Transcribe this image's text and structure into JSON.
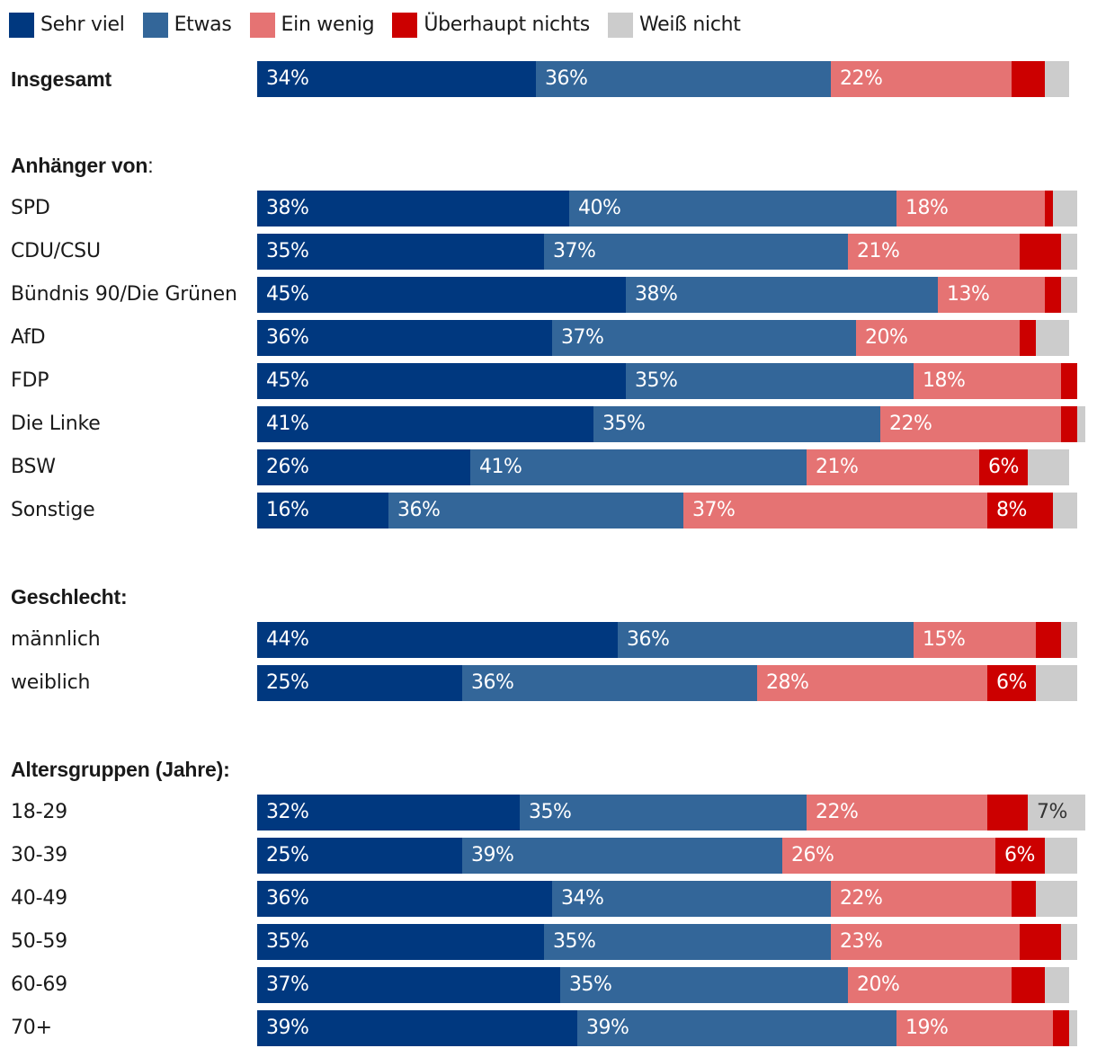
{
  "legend": [
    {
      "label": "Sehr viel",
      "color": "#00387f"
    },
    {
      "label": "Etwas",
      "color": "#336699"
    },
    {
      "label": "Ein wenig",
      "color": "#e57373"
    },
    {
      "label": "Überhaupt nichts",
      "color": "#cc0000"
    },
    {
      "label": "Weiß nicht",
      "color": "#cccccc"
    }
  ],
  "chart_data": {
    "type": "bar",
    "orientation": "horizontal",
    "stacked": true,
    "unit": "%",
    "title": "",
    "xlabel": "",
    "ylabel": "",
    "xlim": [
      0,
      100
    ],
    "grid": false,
    "legend_position": "top-left",
    "series": [
      {
        "name": "Sehr viel",
        "color": "#00387f",
        "label_color": "#ffffff"
      },
      {
        "name": "Etwas",
        "color": "#336699",
        "label_color": "#ffffff"
      },
      {
        "name": "Ein wenig",
        "color": "#e57373",
        "label_color": "#ffffff"
      },
      {
        "name": "Überhaupt nichts",
        "color": "#cc0000",
        "label_color": "#ffffff"
      },
      {
        "name": "Weiß nicht",
        "color": "#cccccc",
        "label_color": "#333333"
      }
    ],
    "rows": [
      {
        "kind": "total",
        "category": "Insgesamt",
        "values": [
          34,
          36,
          22,
          4,
          3
        ],
        "labels": [
          "34%",
          "36%",
          "22%",
          "",
          ""
        ]
      },
      {
        "kind": "heading",
        "text": "Anhänger von",
        "suffix": ":"
      },
      {
        "kind": "bar",
        "category": "SPD",
        "values": [
          38,
          40,
          18,
          1,
          3
        ],
        "labels": [
          "38%",
          "40%",
          "18%",
          "",
          ""
        ]
      },
      {
        "kind": "bar",
        "category": "CDU/CSU",
        "values": [
          35,
          37,
          21,
          5,
          2
        ],
        "labels": [
          "35%",
          "37%",
          "21%",
          "",
          ""
        ]
      },
      {
        "kind": "bar",
        "category": "Bündnis 90/Die Grünen",
        "values": [
          45,
          38,
          13,
          2,
          2
        ],
        "labels": [
          "45%",
          "38%",
          "13%",
          "",
          ""
        ]
      },
      {
        "kind": "bar",
        "category": "AfD",
        "values": [
          36,
          37,
          20,
          2,
          4
        ],
        "labels": [
          "36%",
          "37%",
          "20%",
          "",
          ""
        ]
      },
      {
        "kind": "bar",
        "category": "FDP",
        "values": [
          45,
          35,
          18,
          2,
          0
        ],
        "labels": [
          "45%",
          "35%",
          "18%",
          "",
          ""
        ]
      },
      {
        "kind": "bar",
        "category": "Die Linke",
        "values": [
          41,
          35,
          22,
          2,
          1
        ],
        "labels": [
          "41%",
          "35%",
          "22%",
          "",
          ""
        ]
      },
      {
        "kind": "bar",
        "category": "BSW",
        "values": [
          26,
          41,
          21,
          6,
          5
        ],
        "labels": [
          "26%",
          "41%",
          "21%",
          "6%",
          ""
        ]
      },
      {
        "kind": "bar",
        "category": "Sonstige",
        "values": [
          16,
          36,
          37,
          8,
          3
        ],
        "labels": [
          "16%",
          "36%",
          "37%",
          "8%",
          ""
        ]
      },
      {
        "kind": "heading",
        "text": "Geschlecht:",
        "suffix": ""
      },
      {
        "kind": "bar",
        "category": "männlich",
        "values": [
          44,
          36,
          15,
          3,
          2
        ],
        "labels": [
          "44%",
          "36%",
          "15%",
          "",
          ""
        ]
      },
      {
        "kind": "bar",
        "category": "weiblich",
        "values": [
          25,
          36,
          28,
          6,
          5
        ],
        "labels": [
          "25%",
          "36%",
          "28%",
          "6%",
          ""
        ]
      },
      {
        "kind": "heading",
        "text": "Altersgruppen (Jahre):",
        "suffix": ""
      },
      {
        "kind": "bar",
        "category": "18-29",
        "values": [
          32,
          35,
          22,
          5,
          7
        ],
        "labels": [
          "32%",
          "35%",
          "22%",
          "",
          "7%"
        ]
      },
      {
        "kind": "bar",
        "category": "30-39",
        "values": [
          25,
          39,
          26,
          6,
          4
        ],
        "labels": [
          "25%",
          "39%",
          "26%",
          "6%",
          ""
        ]
      },
      {
        "kind": "bar",
        "category": "40-49",
        "values": [
          36,
          34,
          22,
          3,
          5
        ],
        "labels": [
          "36%",
          "34%",
          "22%",
          "",
          ""
        ]
      },
      {
        "kind": "bar",
        "category": "50-59",
        "values": [
          35,
          35,
          23,
          5,
          2
        ],
        "labels": [
          "35%",
          "35%",
          "23%",
          "",
          ""
        ]
      },
      {
        "kind": "bar",
        "category": "60-69",
        "values": [
          37,
          35,
          20,
          4,
          3
        ],
        "labels": [
          "37%",
          "35%",
          "20%",
          "",
          ""
        ]
      },
      {
        "kind": "bar",
        "category": "70+",
        "values": [
          39,
          39,
          19,
          2,
          1
        ],
        "labels": [
          "39%",
          "39%",
          "19%",
          "",
          ""
        ]
      }
    ]
  }
}
